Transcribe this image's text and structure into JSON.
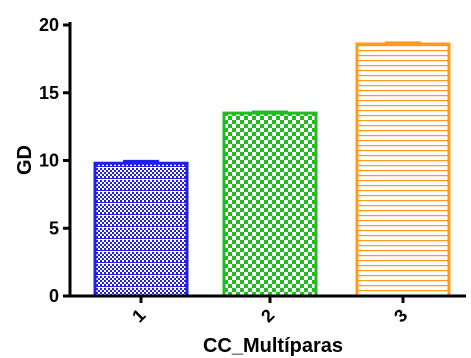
{
  "chart_data": {
    "type": "bar",
    "title": "",
    "xlabel": "CC_Multíparas",
    "ylabel": "GD",
    "categories": [
      "1",
      "2",
      "3"
    ],
    "values": [
      9.8,
      13.5,
      18.6
    ],
    "error": [
      0.15,
      0.1,
      0.1
    ],
    "ylim": [
      0,
      20
    ],
    "yticks": [
      "0",
      "5",
      "10",
      "15",
      "20"
    ],
    "ytick_values": [
      0,
      5,
      10,
      15,
      20
    ],
    "grid": false,
    "colors": [
      "#1f1fe6",
      "#22bb22",
      "#ff9a1a"
    ],
    "patterns": [
      "checker-stripes",
      "checker",
      "horizontal-stripes"
    ]
  }
}
